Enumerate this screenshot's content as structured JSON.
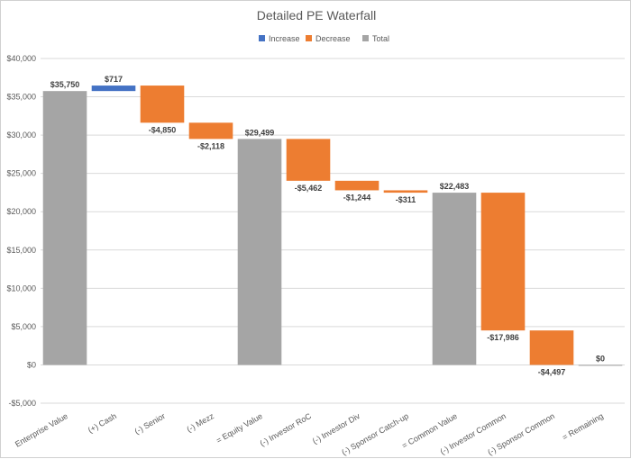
{
  "chart_data": {
    "type": "bar",
    "subtype": "waterfall",
    "title": "Detailed PE Waterfall",
    "legend": {
      "placement": "top",
      "entries": [
        {
          "name": "Increase",
          "color": "#4472c4"
        },
        {
          "name": "Decrease",
          "color": "#ed7d31"
        },
        {
          "name": "Total",
          "color": "#a5a5a5"
        }
      ]
    },
    "categories": [
      "Enterprise Value",
      "(+) Cash",
      "(-) Senior",
      "(-) Mezz",
      "= Equity Value",
      "(-) Investor RoC",
      "(-) Investor Div",
      "(-) Sponsor Catch-up",
      "= Common Value",
      "(-) Investor Common",
      "(-) Sponsor Common",
      "= Remaining"
    ],
    "values": [
      35750,
      717,
      -4850,
      -2118,
      29499,
      -5462,
      -1244,
      -311,
      22483,
      -17986,
      -4497,
      0
    ],
    "kinds": [
      "total",
      "increase",
      "decrease",
      "decrease",
      "total",
      "decrease",
      "decrease",
      "decrease",
      "total",
      "decrease",
      "decrease",
      "total"
    ],
    "data_labels": [
      "$35,750",
      "$717",
      "-$4,850",
      "-$2,118",
      "$29,499",
      "-$5,462",
      "-$1,244",
      "-$311",
      "$22,483",
      "-$17,986",
      "-$4,497",
      "$0"
    ],
    "ylim": [
      -5000,
      40000
    ],
    "yticks": [
      -5000,
      0,
      5000,
      10000,
      15000,
      20000,
      25000,
      30000,
      35000,
      40000
    ],
    "ytick_labels": [
      "-$5,000",
      "$0",
      "$5,000",
      "$10,000",
      "$15,000",
      "$20,000",
      "$25,000",
      "$30,000",
      "$35,000",
      "$40,000"
    ],
    "grid": true,
    "xlabel": "",
    "ylabel": ""
  }
}
